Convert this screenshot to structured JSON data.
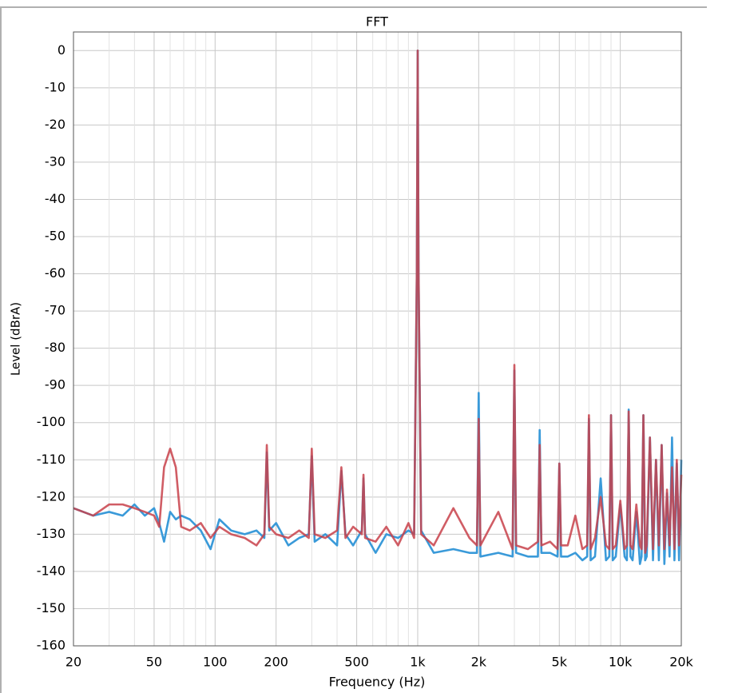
{
  "chart_data": {
    "type": "line",
    "title": "FFT",
    "xlabel": "Frequency (Hz)",
    "ylabel": "Level (dBrA)",
    "xscale": "log",
    "grid": true,
    "xlim": [
      20,
      20000
    ],
    "ylim": [
      -160,
      5
    ],
    "xticks": [
      20,
      50,
      100,
      200,
      500,
      {
        "value": 1000,
        "label": "1k"
      },
      {
        "value": 2000,
        "label": "2k"
      },
      {
        "value": 5000,
        "label": "5k"
      },
      {
        "value": 10000,
        "label": "10k"
      },
      {
        "value": 20000,
        "label": "20k"
      }
    ],
    "xminor_ticks": [
      30,
      40,
      60,
      70,
      80,
      90,
      300,
      400,
      600,
      700,
      800,
      900,
      3000,
      4000,
      6000,
      7000,
      8000,
      9000
    ],
    "yticks": [
      0,
      -10,
      -20,
      -30,
      -40,
      -50,
      -60,
      -70,
      -80,
      -90,
      -100,
      -110,
      -120,
      -130,
      -140,
      -150,
      -160
    ],
    "x": [
      20,
      25,
      30,
      35,
      40,
      45,
      50,
      53,
      56,
      60,
      64,
      68,
      75,
      85,
      95,
      105,
      120,
      140,
      160,
      175,
      180,
      185,
      200,
      230,
      260,
      290,
      300,
      310,
      350,
      400,
      420,
      440,
      480,
      530,
      540,
      550,
      620,
      700,
      800,
      900,
      960,
      990,
      1000,
      1010,
      1040,
      1200,
      1500,
      1800,
      1960,
      2000,
      2040,
      2500,
      2940,
      3000,
      3060,
      3500,
      3920,
      4000,
      4080,
      4500,
      4900,
      5000,
      5100,
      5500,
      6000,
      6500,
      6860,
      7000,
      7140,
      7500,
      8000,
      8500,
      8820,
      9000,
      9180,
      9500,
      10000,
      10500,
      10780,
      11000,
      11220,
      11500,
      12000,
      12500,
      12740,
      13000,
      13260,
      13500,
      14000,
      14500,
      15000,
      15500,
      16000,
      16500,
      17000,
      17500,
      18000,
      18500,
      19000,
      19500,
      20000
    ],
    "series": [
      {
        "color": "#3a9ad9",
        "values": [
          -123,
          -125,
          -124,
          -125,
          -122,
          -125,
          -123,
          -127,
          -132,
          -124,
          -126,
          -125,
          -126,
          -129,
          -134,
          -126,
          -129,
          -130,
          -129,
          -131,
          -108,
          -129,
          -127,
          -133,
          -131,
          -130,
          -109,
          -132,
          -130,
          -133,
          -113,
          -130,
          -133,
          -129,
          -115,
          -130,
          -135,
          -130,
          -131,
          -129,
          -130,
          -60,
          0,
          -60,
          -129,
          -135,
          -134,
          -135,
          -135,
          -92,
          -136,
          -135,
          -136,
          -86,
          -135,
          -136,
          -136,
          -102,
          -135,
          -135,
          -136,
          -111,
          -136,
          -136,
          -135,
          -137,
          -136,
          -99,
          -137,
          -136,
          -115,
          -137,
          -136,
          -98,
          -137,
          -136,
          -122,
          -136,
          -137,
          -96.5,
          -136,
          -137,
          -124,
          -138,
          -136,
          -98,
          -137,
          -136,
          -104,
          -137,
          -110,
          -137,
          -106,
          -138,
          -119,
          -136,
          -104,
          -137,
          -111,
          -137,
          -110
        ]
      },
      {
        "color": "#c8414a",
        "values": [
          -123,
          -125,
          -122,
          -122,
          -123,
          -124,
          -125,
          -128,
          -112,
          -107,
          -112,
          -128,
          -129,
          -127,
          -131,
          -128,
          -130,
          -131,
          -133,
          -130,
          -106,
          -128,
          -130,
          -131,
          -129,
          -131,
          -107,
          -130,
          -131,
          -129,
          -112,
          -131,
          -128,
          -130,
          -114,
          -131,
          -132,
          -128,
          -133,
          -127,
          -131,
          -60,
          0,
          -60,
          -130,
          -133,
          -123,
          -131,
          -133,
          -99,
          -133,
          -124,
          -134,
          -84.5,
          -133,
          -134,
          -132,
          -106,
          -133,
          -132,
          -134,
          -111,
          -133,
          -133,
          -125,
          -134,
          -133,
          -98,
          -134,
          -131,
          -120,
          -133,
          -134,
          -98,
          -134,
          -133,
          -121,
          -134,
          -133,
          -97,
          -133,
          -134,
          -122,
          -133,
          -134,
          -98,
          -135,
          -133,
          -104,
          -134,
          -110,
          -133,
          -106,
          -134,
          -118,
          -133,
          -112,
          -134,
          -110,
          -133,
          -114
        ]
      }
    ]
  }
}
